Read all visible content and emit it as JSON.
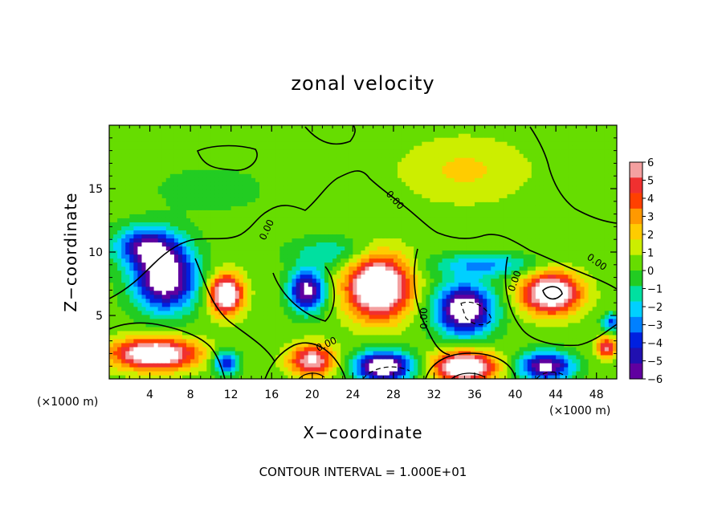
{
  "chart_data": {
    "type": "heatmap",
    "title": "zonal velocity",
    "xlabel": "X−coordinate",
    "ylabel": "Z−coordinate",
    "x_unit_left": "(×1000 m)",
    "x_unit_right": "(×1000 m)",
    "xlim": [
      0,
      50
    ],
    "ylim": [
      0,
      20
    ],
    "xticks": [
      4,
      8,
      12,
      16,
      20,
      24,
      28,
      32,
      36,
      40,
      44,
      48
    ],
    "yticks": [
      5,
      10,
      15
    ],
    "colorbar": {
      "min": -6,
      "max": 6,
      "ticks": [
        "6",
        "5",
        "4",
        "3",
        "2",
        "1",
        "0",
        "−1",
        "−2",
        "−3",
        "−4",
        "−5",
        "−6"
      ],
      "colors": [
        "#f4a0a0",
        "#f03030",
        "#ff4000",
        "#ff9900",
        "#ffcc00",
        "#ccee00",
        "#66dd00",
        "#22cc22",
        "#00e0a0",
        "#00d0ff",
        "#0080ff",
        "#0020e0",
        "#2010b0",
        "#6000a0"
      ]
    },
    "contour_labels": [
      "0.00",
      "0.00",
      "0.00",
      "0.00",
      "0.00",
      "0.00"
    ],
    "cores": [
      {
        "x": 5.5,
        "z": 8.0,
        "u": -8,
        "sx": 3.0,
        "sz": 2.5
      },
      {
        "x": 11.5,
        "z": 6.7,
        "u": 8,
        "sx": 1.6,
        "sz": 1.5
      },
      {
        "x": 19.5,
        "z": 7.0,
        "u": -7,
        "sx": 1.7,
        "sz": 1.6
      },
      {
        "x": 26.5,
        "z": 7.3,
        "u": 9,
        "sx": 3.0,
        "sz": 2.4
      },
      {
        "x": 35.0,
        "z": 5.5,
        "u": -8,
        "sx": 2.8,
        "sz": 2.0
      },
      {
        "x": 43.5,
        "z": 6.8,
        "u": 8,
        "sx": 2.8,
        "sz": 1.6
      },
      {
        "x": 4.5,
        "z": 2.0,
        "u": 8,
        "sx": 4.0,
        "sz": 1.2
      },
      {
        "x": 11.5,
        "z": 1.3,
        "u": -5,
        "sx": 1.2,
        "sz": 0.9
      },
      {
        "x": 20.0,
        "z": 1.5,
        "u": 6,
        "sx": 2.2,
        "sz": 1.2
      },
      {
        "x": 27.0,
        "z": 1.0,
        "u": -8,
        "sx": 2.8,
        "sz": 1.2
      },
      {
        "x": 35.0,
        "z": 1.0,
        "u": 8,
        "sx": 3.0,
        "sz": 1.2
      },
      {
        "x": 43.0,
        "z": 1.0,
        "u": -7,
        "sx": 2.6,
        "sz": 1.1
      },
      {
        "x": 49.0,
        "z": 2.5,
        "u": 5,
        "sx": 1.0,
        "sz": 0.8
      },
      {
        "x": 49.5,
        "z": 4.5,
        "u": -4,
        "sx": 0.9,
        "sz": 0.7
      },
      {
        "x": 3.5,
        "z": 10.5,
        "u": -5,
        "sx": 3.0,
        "sz": 1.5
      },
      {
        "x": 22.0,
        "z": 10.0,
        "u": -2,
        "sx": 4.0,
        "sz": 1.2
      },
      {
        "x": 37.0,
        "z": 9.0,
        "u": -3,
        "sx": 5.0,
        "sz": 0.9
      },
      {
        "x": 35.0,
        "z": 16.5,
        "u": 1.5,
        "sx": 6.0,
        "sz": 2.5
      },
      {
        "x": 10.0,
        "z": 15.0,
        "u": -0.8,
        "sx": 6.0,
        "sz": 2.0
      }
    ],
    "background_u": 0.4,
    "contour_note": "CONTOUR INTERVAL = 1.000E+01"
  }
}
